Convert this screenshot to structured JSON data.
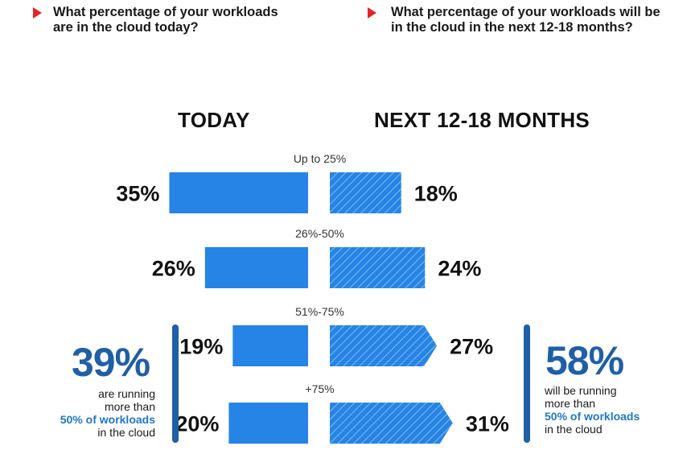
{
  "questions": {
    "today": "What percentage of your workloads are in the cloud today?",
    "future": "What percentage of your workloads will be in the cloud in the next 12-18 months?"
  },
  "headers": {
    "today": "TODAY",
    "future": "NEXT 12-18 MONTHS"
  },
  "summary_today": {
    "value": "39%",
    "line1": "are running",
    "line2": "more than",
    "highlight": "50% of workloads",
    "line4": "in the cloud"
  },
  "summary_future": {
    "value": "58%",
    "line1": "will be running",
    "line2": "more than",
    "highlight": "50% of workloads",
    "line4": "in the cloud"
  },
  "colors": {
    "bar": "#2684e6",
    "accent": "#1f5fa6",
    "highlight": "#1f78c8",
    "arrow": "#e32526"
  },
  "chart_data": {
    "type": "bar",
    "categories": [
      "Up to 25%",
      "26%-50%",
      "51%-75%",
      "+75%"
    ],
    "series": [
      {
        "name": "TODAY",
        "values": [
          35,
          26,
          19,
          20
        ]
      },
      {
        "name": "NEXT 12-18 MONTHS",
        "values": [
          18,
          24,
          27,
          31
        ]
      }
    ],
    "value_labels": {
      "today": [
        "35%",
        "26%",
        "19%",
        "20%"
      ],
      "future": [
        "18%",
        "24%",
        "27%",
        "31%"
      ]
    }
  }
}
